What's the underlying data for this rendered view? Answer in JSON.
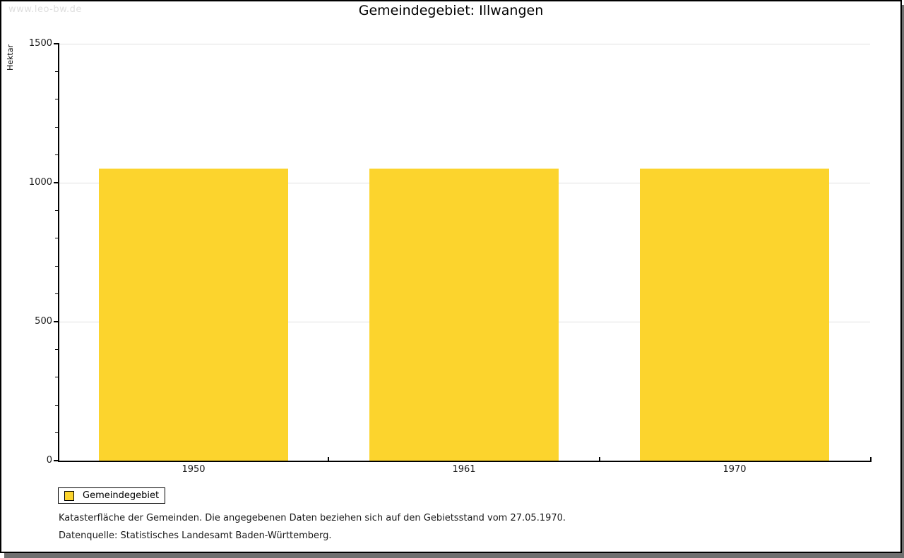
{
  "watermark": "www.leo-bw.de",
  "title": "Gemeindegebiet: Illwangen",
  "chart_data": {
    "type": "bar",
    "title": "Gemeindegebiet: Illwangen",
    "categories": [
      "1950",
      "1961",
      "1970"
    ],
    "series": [
      {
        "name": "Gemeindegebiet",
        "values": [
          1050,
          1050,
          1050
        ]
      }
    ],
    "xlabel": "",
    "ylabel": "Hektar",
    "ylim": [
      0,
      1500
    ],
    "y_major_step": 500,
    "y_minor_step": 100,
    "y_tick_labels": [
      "0",
      "500",
      "1000",
      "1500"
    ],
    "grid": true,
    "legend_position": "bottom-left",
    "bar_color": "#FCD42D"
  },
  "legend": {
    "items": [
      {
        "label": "Gemeindegebiet",
        "color": "#FCD42D"
      }
    ]
  },
  "footnotes": [
    "Katasterfläche der Gemeinden. Die angegebenen Daten beziehen sich auf den Gebietsstand vom 27.05.1970.",
    "Datenquelle: Statistisches Landesamt Baden-Württemberg."
  ],
  "colors": {
    "bar": "#FCD42D",
    "grid": "#E0E0E0",
    "axis": "#000000",
    "watermark": "#DEDEDE",
    "shadow": "#6F6F6F"
  }
}
